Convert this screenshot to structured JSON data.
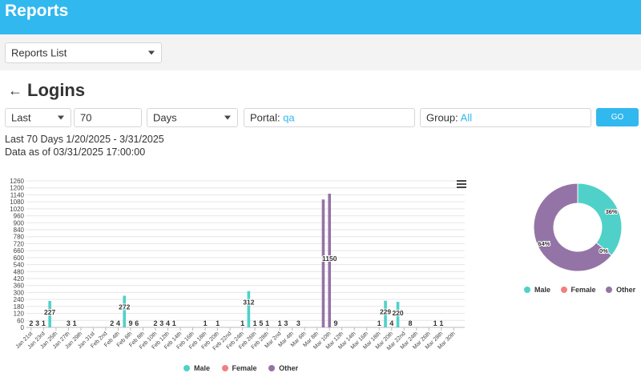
{
  "header": {
    "title": "Reports"
  },
  "reports_select": {
    "value": "Reports List"
  },
  "page": {
    "title": "Logins"
  },
  "filters": {
    "range_type": "Last",
    "range_value": "70",
    "range_unit": "Days",
    "portal_label": "Portal:",
    "portal_value": "qa",
    "group_label": "Group:",
    "group_value": "All",
    "go_label": "GO"
  },
  "info": {
    "range_text": "Last 70 Days 1/20/2025 - 3/31/2025",
    "data_as_of": "Data as of 03/31/2025 17:00:00"
  },
  "colors": {
    "male": "#4fd1c9",
    "female": "#f08080",
    "other": "#9474a6",
    "accent": "#31b8ee"
  },
  "icons": {
    "back": "arrow-left-icon",
    "menu": "hamburger-menu-icon",
    "dropdown": "chevron-down-icon"
  },
  "chart_data": [
    {
      "type": "bar",
      "ylim": [
        0,
        1260
      ],
      "yticks": [
        0,
        60,
        120,
        180,
        240,
        300,
        360,
        420,
        480,
        540,
        600,
        660,
        720,
        780,
        840,
        900,
        960,
        1020,
        1080,
        1140,
        1200,
        1260
      ],
      "x_tick_labels": [
        "Jan 21st",
        "Jan 23rd",
        "Jan 25th",
        "Jan 27th",
        "Jan 29th",
        "Jan 31st",
        "Feb 2nd",
        "Feb 4th",
        "Feb 6th",
        "Feb 8th",
        "Feb 10th",
        "Feb 12th",
        "Feb 14th",
        "Feb 16th",
        "Feb 18th",
        "Feb 20th",
        "Feb 22nd",
        "Feb 24th",
        "Feb 26th",
        "Feb 28th",
        "Mar 2nd",
        "Mar 4th",
        "Mar 6th",
        "Mar 8th",
        "Mar 10th",
        "Mar 12th",
        "Mar 14th",
        "Mar 16th",
        "Mar 18th",
        "Mar 20th",
        "Mar 22nd",
        "Mar 24th",
        "Mar 26th",
        "Mar 28th",
        "Mar 30th"
      ],
      "series": [
        {
          "name": "Male",
          "points": [
            {
              "x": "Jan 24th",
              "value": 227
            },
            {
              "x": "Feb 5th",
              "value": 272
            },
            {
              "x": "Feb 25th",
              "value": 312
            },
            {
              "x": "Mar 19th",
              "value": 229
            },
            {
              "x": "Mar 21st",
              "value": 220
            }
          ]
        },
        {
          "name": "Female",
          "points": []
        },
        {
          "name": "Other",
          "points": [
            {
              "x": "Mar 9th",
              "value": 1100
            },
            {
              "x": "Mar 10th",
              "value": 1150
            }
          ]
        }
      ],
      "data_labels": [
        {
          "x": "Jan 21st",
          "text": "2"
        },
        {
          "x": "Jan 22nd",
          "text": "3"
        },
        {
          "x": "Jan 23rd",
          "text": "1"
        },
        {
          "x": "Jan 24th",
          "text": "227"
        },
        {
          "x": "Jan 27th",
          "text": "3"
        },
        {
          "x": "Jan 28th",
          "text": "1"
        },
        {
          "x": "Feb 3rd",
          "text": "2"
        },
        {
          "x": "Feb 4th",
          "text": "4"
        },
        {
          "x": "Feb 5th",
          "text": "272"
        },
        {
          "x": "Feb 6th",
          "text": "9"
        },
        {
          "x": "Feb 7th",
          "text": "6"
        },
        {
          "x": "Feb 10th",
          "text": "2"
        },
        {
          "x": "Feb 11th",
          "text": "3"
        },
        {
          "x": "Feb 12th",
          "text": "4"
        },
        {
          "x": "Feb 13th",
          "text": "1"
        },
        {
          "x": "Feb 18th",
          "text": "1"
        },
        {
          "x": "Feb 20th",
          "text": "1"
        },
        {
          "x": "Feb 24th",
          "text": "1"
        },
        {
          "x": "Feb 25th",
          "text": "312"
        },
        {
          "x": "Feb 26th",
          "text": "1"
        },
        {
          "x": "Feb 27th",
          "text": "5"
        },
        {
          "x": "Feb 28th",
          "text": "1"
        },
        {
          "x": "Mar 2nd",
          "text": "1"
        },
        {
          "x": "Mar 3rd",
          "text": "3"
        },
        {
          "x": "Mar 5th",
          "text": "3"
        },
        {
          "x": "Mar 10th",
          "text": "1150"
        },
        {
          "x": "Mar 11th",
          "text": "9"
        },
        {
          "x": "Mar 18th",
          "text": "1"
        },
        {
          "x": "Mar 19th",
          "text": "229"
        },
        {
          "x": "Mar 20th",
          "text": "4"
        },
        {
          "x": "Mar 21st",
          "text": "220"
        },
        {
          "x": "Mar 23rd",
          "text": "8"
        },
        {
          "x": "Mar 27th",
          "text": "1"
        },
        {
          "x": "Mar 28th",
          "text": "1"
        }
      ],
      "legend": [
        "Male",
        "Female",
        "Other"
      ]
    },
    {
      "type": "pie",
      "donut": true,
      "slices": [
        {
          "name": "Male",
          "value": 36,
          "label": "36%"
        },
        {
          "name": "Female",
          "value": 0,
          "label": "0%"
        },
        {
          "name": "Other",
          "value": 64,
          "label": "64%"
        }
      ],
      "legend": [
        "Male",
        "Female",
        "Other"
      ]
    }
  ]
}
